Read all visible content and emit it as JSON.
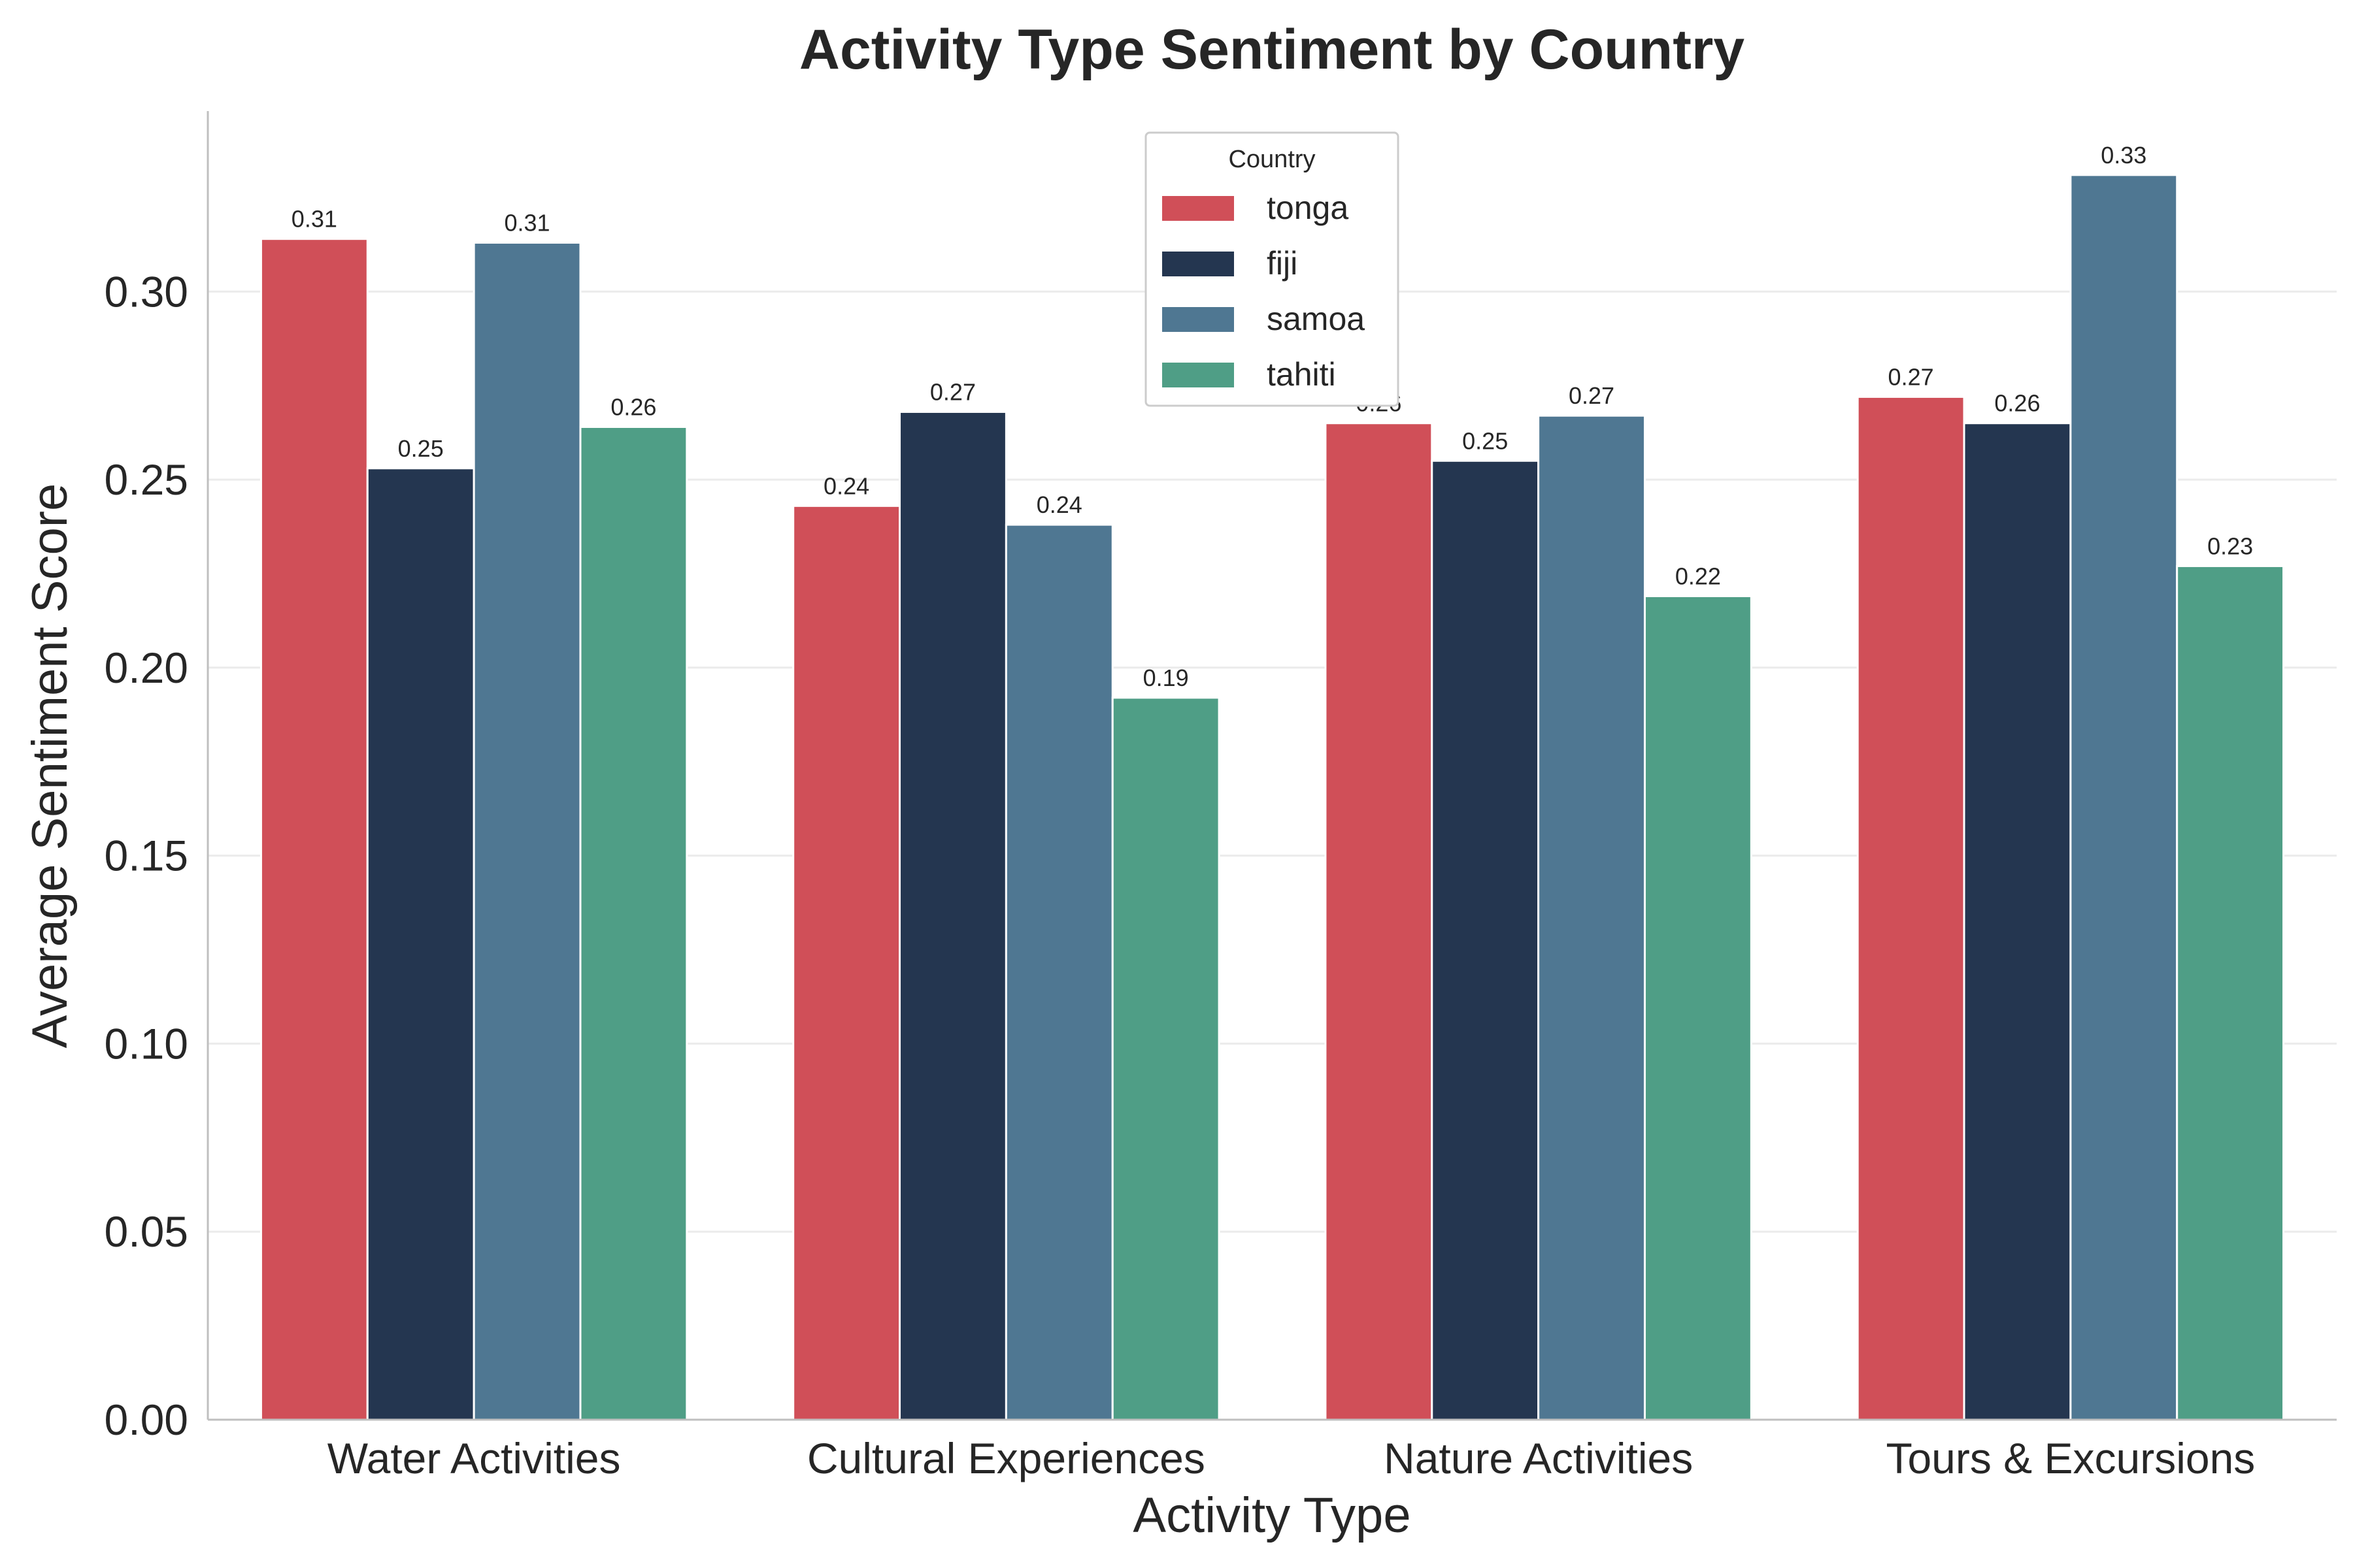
{
  "chart_data": {
    "type": "bar",
    "title": "Activity Type Sentiment by Country",
    "xlabel": "Activity Type",
    "ylabel": "Average Sentiment Score",
    "categories": [
      "Water Activities",
      "Cultural Experiences",
      "Nature Activities",
      "Tours & Excursions"
    ],
    "ylim": [
      0,
      0.348
    ],
    "yticks": [
      0.0,
      0.05,
      0.1,
      0.15,
      0.2,
      0.25,
      0.3
    ],
    "ytick_labels": [
      "0.00",
      "0.05",
      "0.10",
      "0.15",
      "0.20",
      "0.25",
      "0.30"
    ],
    "grid": "horizontal",
    "legend": {
      "title": "Country",
      "placement": "top-center"
    },
    "series": [
      {
        "name": "tonga",
        "color": "#d04f58",
        "values": [
          0.314,
          0.243,
          0.265,
          0.272
        ],
        "labels": [
          "0.31",
          "0.24",
          "0.26",
          "0.27"
        ]
      },
      {
        "name": "fiji",
        "color": "#243650",
        "values": [
          0.253,
          0.268,
          0.255,
          0.265
        ],
        "labels": [
          "0.25",
          "0.27",
          "0.25",
          "0.26"
        ]
      },
      {
        "name": "samoa",
        "color": "#4f7792",
        "values": [
          0.313,
          0.238,
          0.267,
          0.331
        ],
        "labels": [
          "0.31",
          "0.24",
          "0.27",
          "0.33"
        ]
      },
      {
        "name": "tahiti",
        "color": "#4f9e86",
        "values": [
          0.264,
          0.192,
          0.219,
          0.227
        ],
        "labels": [
          "0.26",
          "0.19",
          "0.22",
          "0.23"
        ]
      }
    ]
  }
}
